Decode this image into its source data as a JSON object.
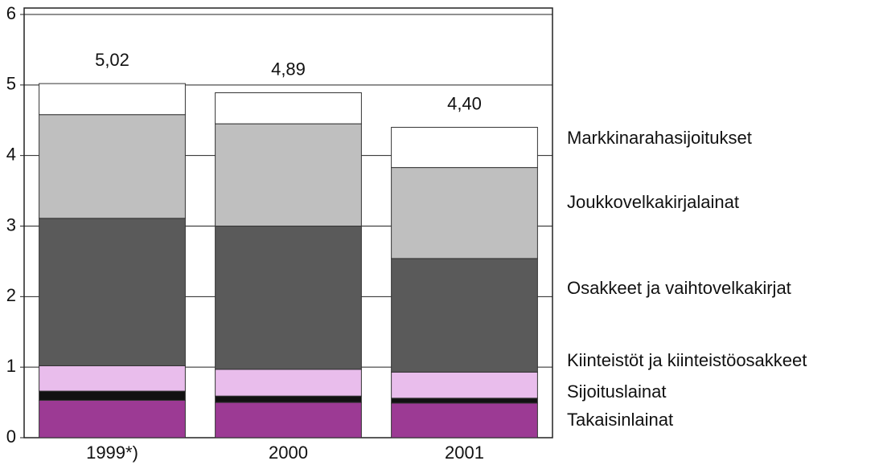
{
  "chart_data": {
    "type": "stacked_bar",
    "categories": [
      "1999*)",
      "2000",
      "2001"
    ],
    "series": [
      {
        "name": "Takaisinlainat",
        "color": "#9c3a94",
        "values": [
          0.53,
          0.5,
          0.49
        ]
      },
      {
        "name": "Sijoituslainat",
        "color": "#111111",
        "values": [
          0.13,
          0.09,
          0.07
        ]
      },
      {
        "name": "Kiinteistöt ja kiinteistöosakkeet",
        "color": "#e9bdec",
        "values": [
          0.36,
          0.38,
          0.37
        ]
      },
      {
        "name": "Osakkeet ja vaihtovelkakirjat",
        "color": "#5a5a5a",
        "values": [
          2.09,
          2.03,
          1.61
        ]
      },
      {
        "name": "Joukkovelkakirjalainat",
        "color": "#bfbfbf",
        "values": [
          1.47,
          1.45,
          1.29
        ]
      },
      {
        "name": "Markkinarahasijoitukset",
        "color": "#ffffff",
        "values": [
          0.44,
          0.44,
          0.57
        ]
      }
    ],
    "totals": [
      5.02,
      4.89,
      4.4
    ],
    "total_labels": [
      "5,02",
      "4,89",
      "4,40"
    ],
    "ylim": [
      0,
      6
    ],
    "yticks": [
      0,
      1,
      2,
      3,
      4,
      5,
      6
    ],
    "grid": true
  }
}
